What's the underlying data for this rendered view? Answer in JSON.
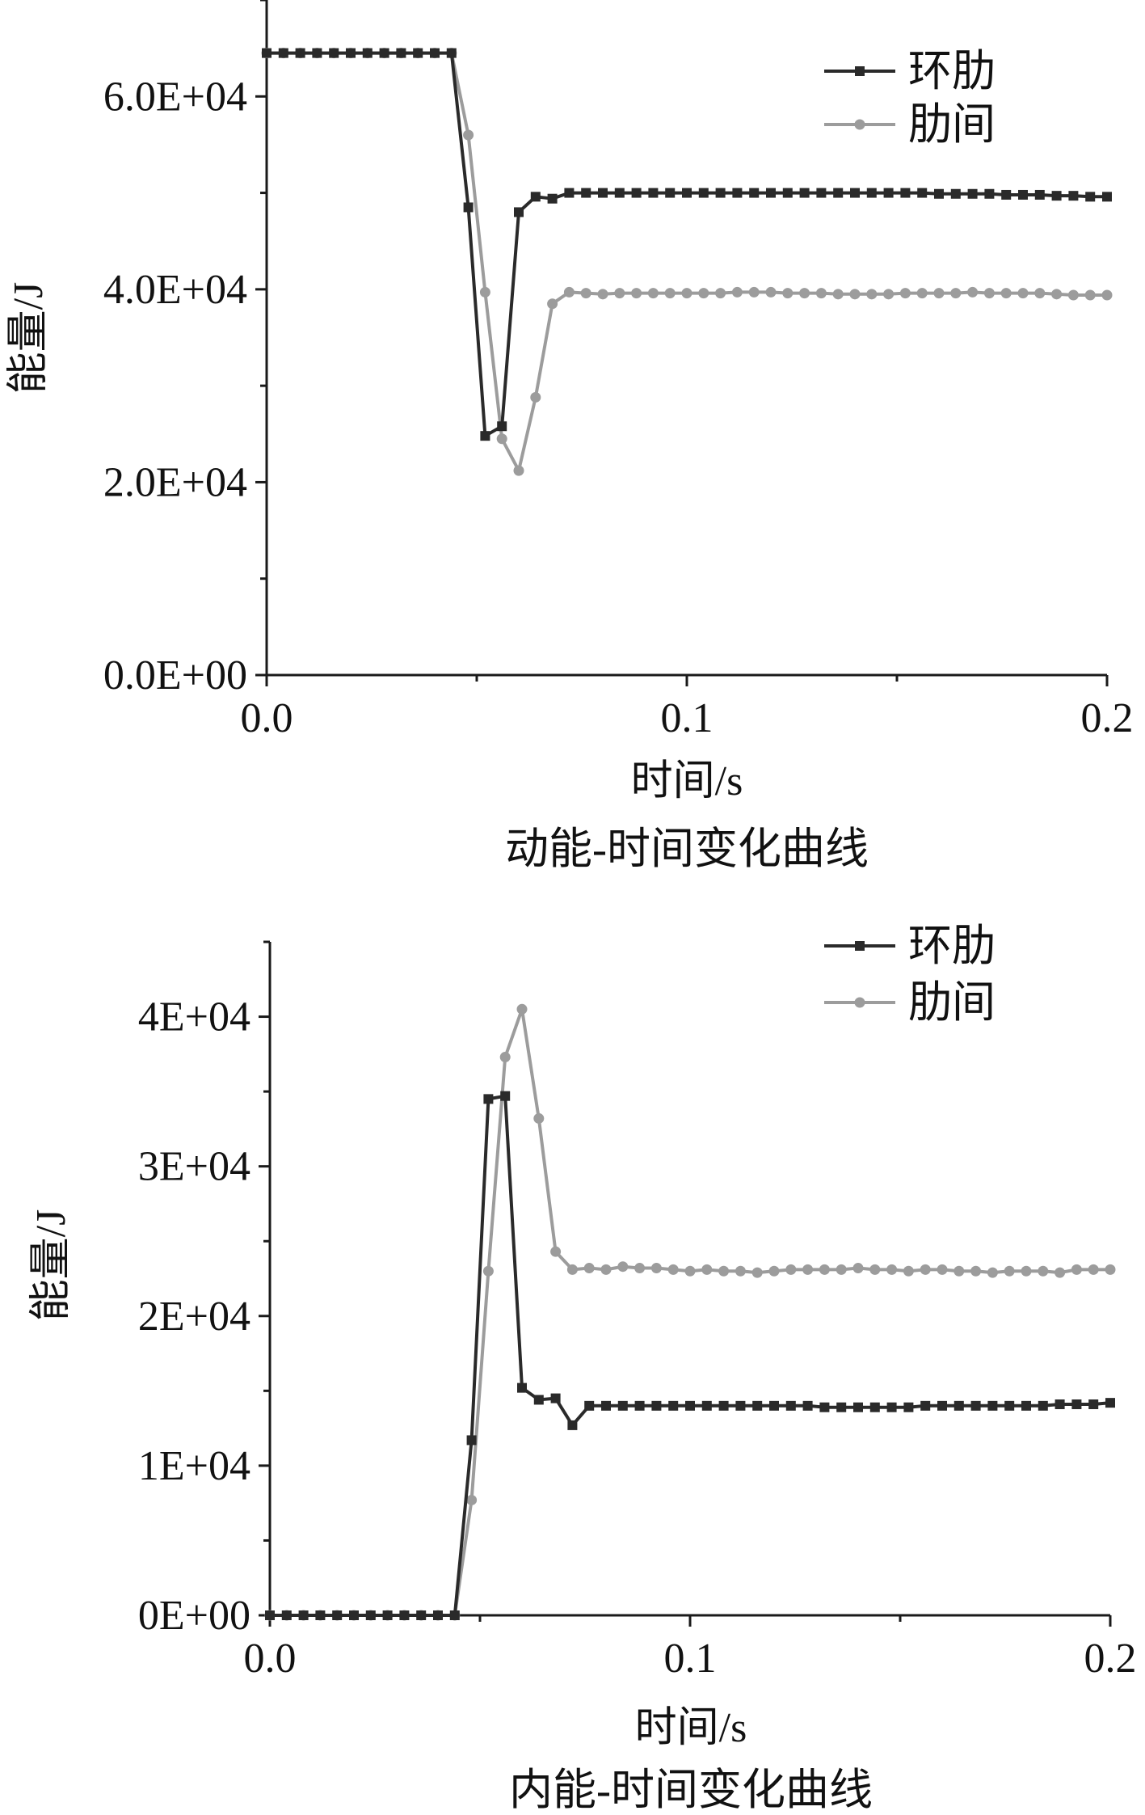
{
  "colors": {
    "huanlei": "#2a2a2a",
    "leijian": "#9c9c9c",
    "axis": "#1a1a1a"
  },
  "chart_data": [
    {
      "type": "line",
      "title": "动能-时间变化曲线",
      "xlabel": "时间/s",
      "ylabel": "能量/J",
      "xlim": [
        0,
        0.2
      ],
      "ylim": [
        0,
        70000
      ],
      "x_ticks": [
        0,
        0.1,
        0.2
      ],
      "x_tick_labels": [
        "0.0",
        "0.1",
        "0.2"
      ],
      "y_ticks": [
        0,
        20000,
        40000,
        60000
      ],
      "y_tick_labels": [
        "0.0E+00",
        "2.0E+04",
        "4.0E+04",
        "6.0E+04"
      ],
      "legend": {
        "placement": "top-right",
        "entries": [
          "环肋",
          "肋间"
        ]
      },
      "grid": false,
      "series": [
        {
          "name": "环肋",
          "marker": "square",
          "x": [
            0,
            0.004,
            0.008,
            0.012,
            0.016,
            0.02,
            0.024,
            0.028,
            0.032,
            0.036,
            0.04,
            0.044,
            0.048,
            0.052,
            0.056,
            0.06,
            0.064,
            0.068,
            0.072,
            0.076,
            0.08,
            0.084,
            0.088,
            0.092,
            0.096,
            0.1,
            0.104,
            0.108,
            0.112,
            0.116,
            0.12,
            0.124,
            0.128,
            0.132,
            0.136,
            0.14,
            0.144,
            0.148,
            0.152,
            0.156,
            0.16,
            0.164,
            0.168,
            0.172,
            0.176,
            0.18,
            0.184,
            0.188,
            0.192,
            0.196,
            0.2
          ],
          "y": [
            64500,
            64500,
            64500,
            64500,
            64500,
            64500,
            64500,
            64500,
            64500,
            64500,
            64500,
            64500,
            48500,
            24800,
            25800,
            48000,
            49600,
            49400,
            50000,
            50000,
            50000,
            50000,
            50000,
            50000,
            50000,
            50000,
            50000,
            50000,
            50000,
            50000,
            50000,
            50000,
            50000,
            50000,
            50000,
            50000,
            50000,
            50000,
            50000,
            50000,
            49900,
            49900,
            49900,
            49900,
            49800,
            49800,
            49800,
            49700,
            49700,
            49600,
            49600
          ]
        },
        {
          "name": "肋间",
          "marker": "circle",
          "x": [
            0,
            0.004,
            0.008,
            0.012,
            0.016,
            0.02,
            0.024,
            0.028,
            0.032,
            0.036,
            0.04,
            0.044,
            0.048,
            0.052,
            0.056,
            0.06,
            0.064,
            0.068,
            0.072,
            0.076,
            0.08,
            0.084,
            0.088,
            0.092,
            0.096,
            0.1,
            0.104,
            0.108,
            0.112,
            0.116,
            0.12,
            0.124,
            0.128,
            0.132,
            0.136,
            0.14,
            0.144,
            0.148,
            0.152,
            0.156,
            0.16,
            0.164,
            0.168,
            0.172,
            0.176,
            0.18,
            0.184,
            0.188,
            0.192,
            0.196,
            0.2
          ],
          "y": [
            64500,
            64500,
            64500,
            64500,
            64500,
            64500,
            64500,
            64500,
            64500,
            64500,
            64500,
            64500,
            56000,
            39700,
            24500,
            21200,
            28800,
            38500,
            39700,
            39600,
            39500,
            39600,
            39600,
            39600,
            39600,
            39600,
            39600,
            39600,
            39700,
            39700,
            39700,
            39600,
            39600,
            39600,
            39500,
            39500,
            39500,
            39500,
            39600,
            39600,
            39600,
            39600,
            39700,
            39600,
            39600,
            39600,
            39600,
            39500,
            39400,
            39400,
            39400
          ]
        }
      ]
    },
    {
      "type": "line",
      "title": "内能-时间变化曲线",
      "xlabel": "时间/s",
      "ylabel": "能量/J",
      "xlim": [
        0,
        0.2
      ],
      "ylim": [
        0,
        45000
      ],
      "x_ticks": [
        0,
        0.1,
        0.2
      ],
      "x_tick_labels": [
        "0.0",
        "0.1",
        "0.2"
      ],
      "y_ticks": [
        0,
        10000,
        20000,
        30000,
        40000
      ],
      "y_tick_labels": [
        "0E+00",
        "1E+04",
        "2E+04",
        "3E+04",
        "4E+04"
      ],
      "legend": {
        "placement": "top-right",
        "entries": [
          "环肋",
          "肋间"
        ]
      },
      "grid": false,
      "series": [
        {
          "name": "环肋",
          "marker": "square",
          "x": [
            0,
            0.004,
            0.008,
            0.012,
            0.016,
            0.02,
            0.024,
            0.028,
            0.032,
            0.036,
            0.04,
            0.044,
            0.048,
            0.052,
            0.056,
            0.06,
            0.064,
            0.068,
            0.072,
            0.076,
            0.08,
            0.084,
            0.088,
            0.092,
            0.096,
            0.1,
            0.104,
            0.108,
            0.112,
            0.116,
            0.12,
            0.124,
            0.128,
            0.132,
            0.136,
            0.14,
            0.144,
            0.148,
            0.152,
            0.156,
            0.16,
            0.164,
            0.168,
            0.172,
            0.176,
            0.18,
            0.184,
            0.188,
            0.192,
            0.196,
            0.2
          ],
          "y": [
            0,
            0,
            0,
            0,
            0,
            0,
            0,
            0,
            0,
            0,
            0,
            0,
            11700,
            34500,
            34700,
            15200,
            14400,
            14500,
            12700,
            14000,
            14000,
            14000,
            14000,
            14000,
            14000,
            14000,
            14000,
            14000,
            14000,
            14000,
            14000,
            14000,
            14000,
            13900,
            13900,
            13900,
            13900,
            13900,
            13900,
            14000,
            14000,
            14000,
            14000,
            14000,
            14000,
            14000,
            14000,
            14100,
            14100,
            14100,
            14200
          ]
        },
        {
          "name": "肋间",
          "marker": "circle",
          "x": [
            0,
            0.004,
            0.008,
            0.012,
            0.016,
            0.02,
            0.024,
            0.028,
            0.032,
            0.036,
            0.04,
            0.044,
            0.048,
            0.052,
            0.056,
            0.06,
            0.064,
            0.068,
            0.072,
            0.076,
            0.08,
            0.084,
            0.088,
            0.092,
            0.096,
            0.1,
            0.104,
            0.108,
            0.112,
            0.116,
            0.12,
            0.124,
            0.128,
            0.132,
            0.136,
            0.14,
            0.144,
            0.148,
            0.152,
            0.156,
            0.16,
            0.164,
            0.168,
            0.172,
            0.176,
            0.18,
            0.184,
            0.188,
            0.192,
            0.196,
            0.2
          ],
          "y": [
            0,
            0,
            0,
            0,
            0,
            0,
            0,
            0,
            0,
            0,
            0,
            0,
            7700,
            23000,
            37300,
            40500,
            33200,
            24300,
            23100,
            23200,
            23100,
            23300,
            23200,
            23200,
            23100,
            23000,
            23100,
            23000,
            23000,
            22900,
            23000,
            23100,
            23100,
            23100,
            23100,
            23200,
            23100,
            23100,
            23000,
            23100,
            23100,
            23000,
            23000,
            22900,
            23000,
            23000,
            23000,
            22900,
            23100,
            23100,
            23100
          ]
        }
      ]
    }
  ]
}
